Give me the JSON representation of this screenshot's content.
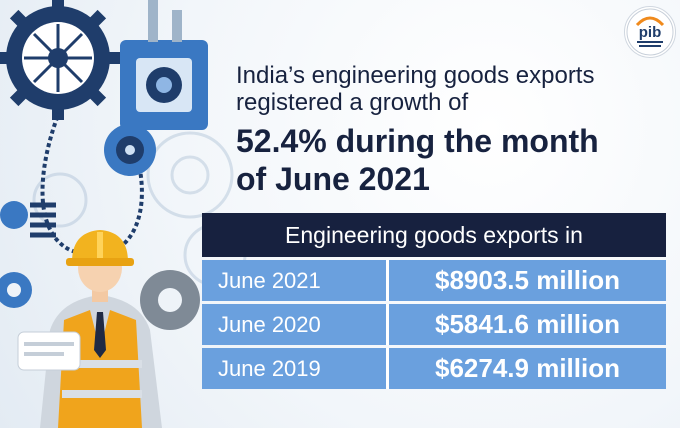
{
  "headline": {
    "line_1": "India’s engineering goods exports",
    "line_2": "registered a growth of",
    "line_3": "52.4% during the month",
    "line_4": "of June 2021"
  },
  "table": {
    "header": "Engineering goods exports in",
    "rows": [
      {
        "year": "June 2021",
        "value": "$8903.5 million"
      },
      {
        "year": "June 2020",
        "value": "$5841.6 million"
      },
      {
        "year": "June 2019",
        "value": "$6274.9 million"
      }
    ]
  },
  "logo": {
    "text": "pib"
  },
  "colors": {
    "navy": "#17213f",
    "row_blue": "#6aa0de",
    "gear_dark": "#1f3d6b",
    "gear_mid": "#3a78c2",
    "helmet": "#f2b31f",
    "vest": "#f0a41c"
  },
  "icons": [
    "gear-icon",
    "worker-figure",
    "pib-logo"
  ]
}
